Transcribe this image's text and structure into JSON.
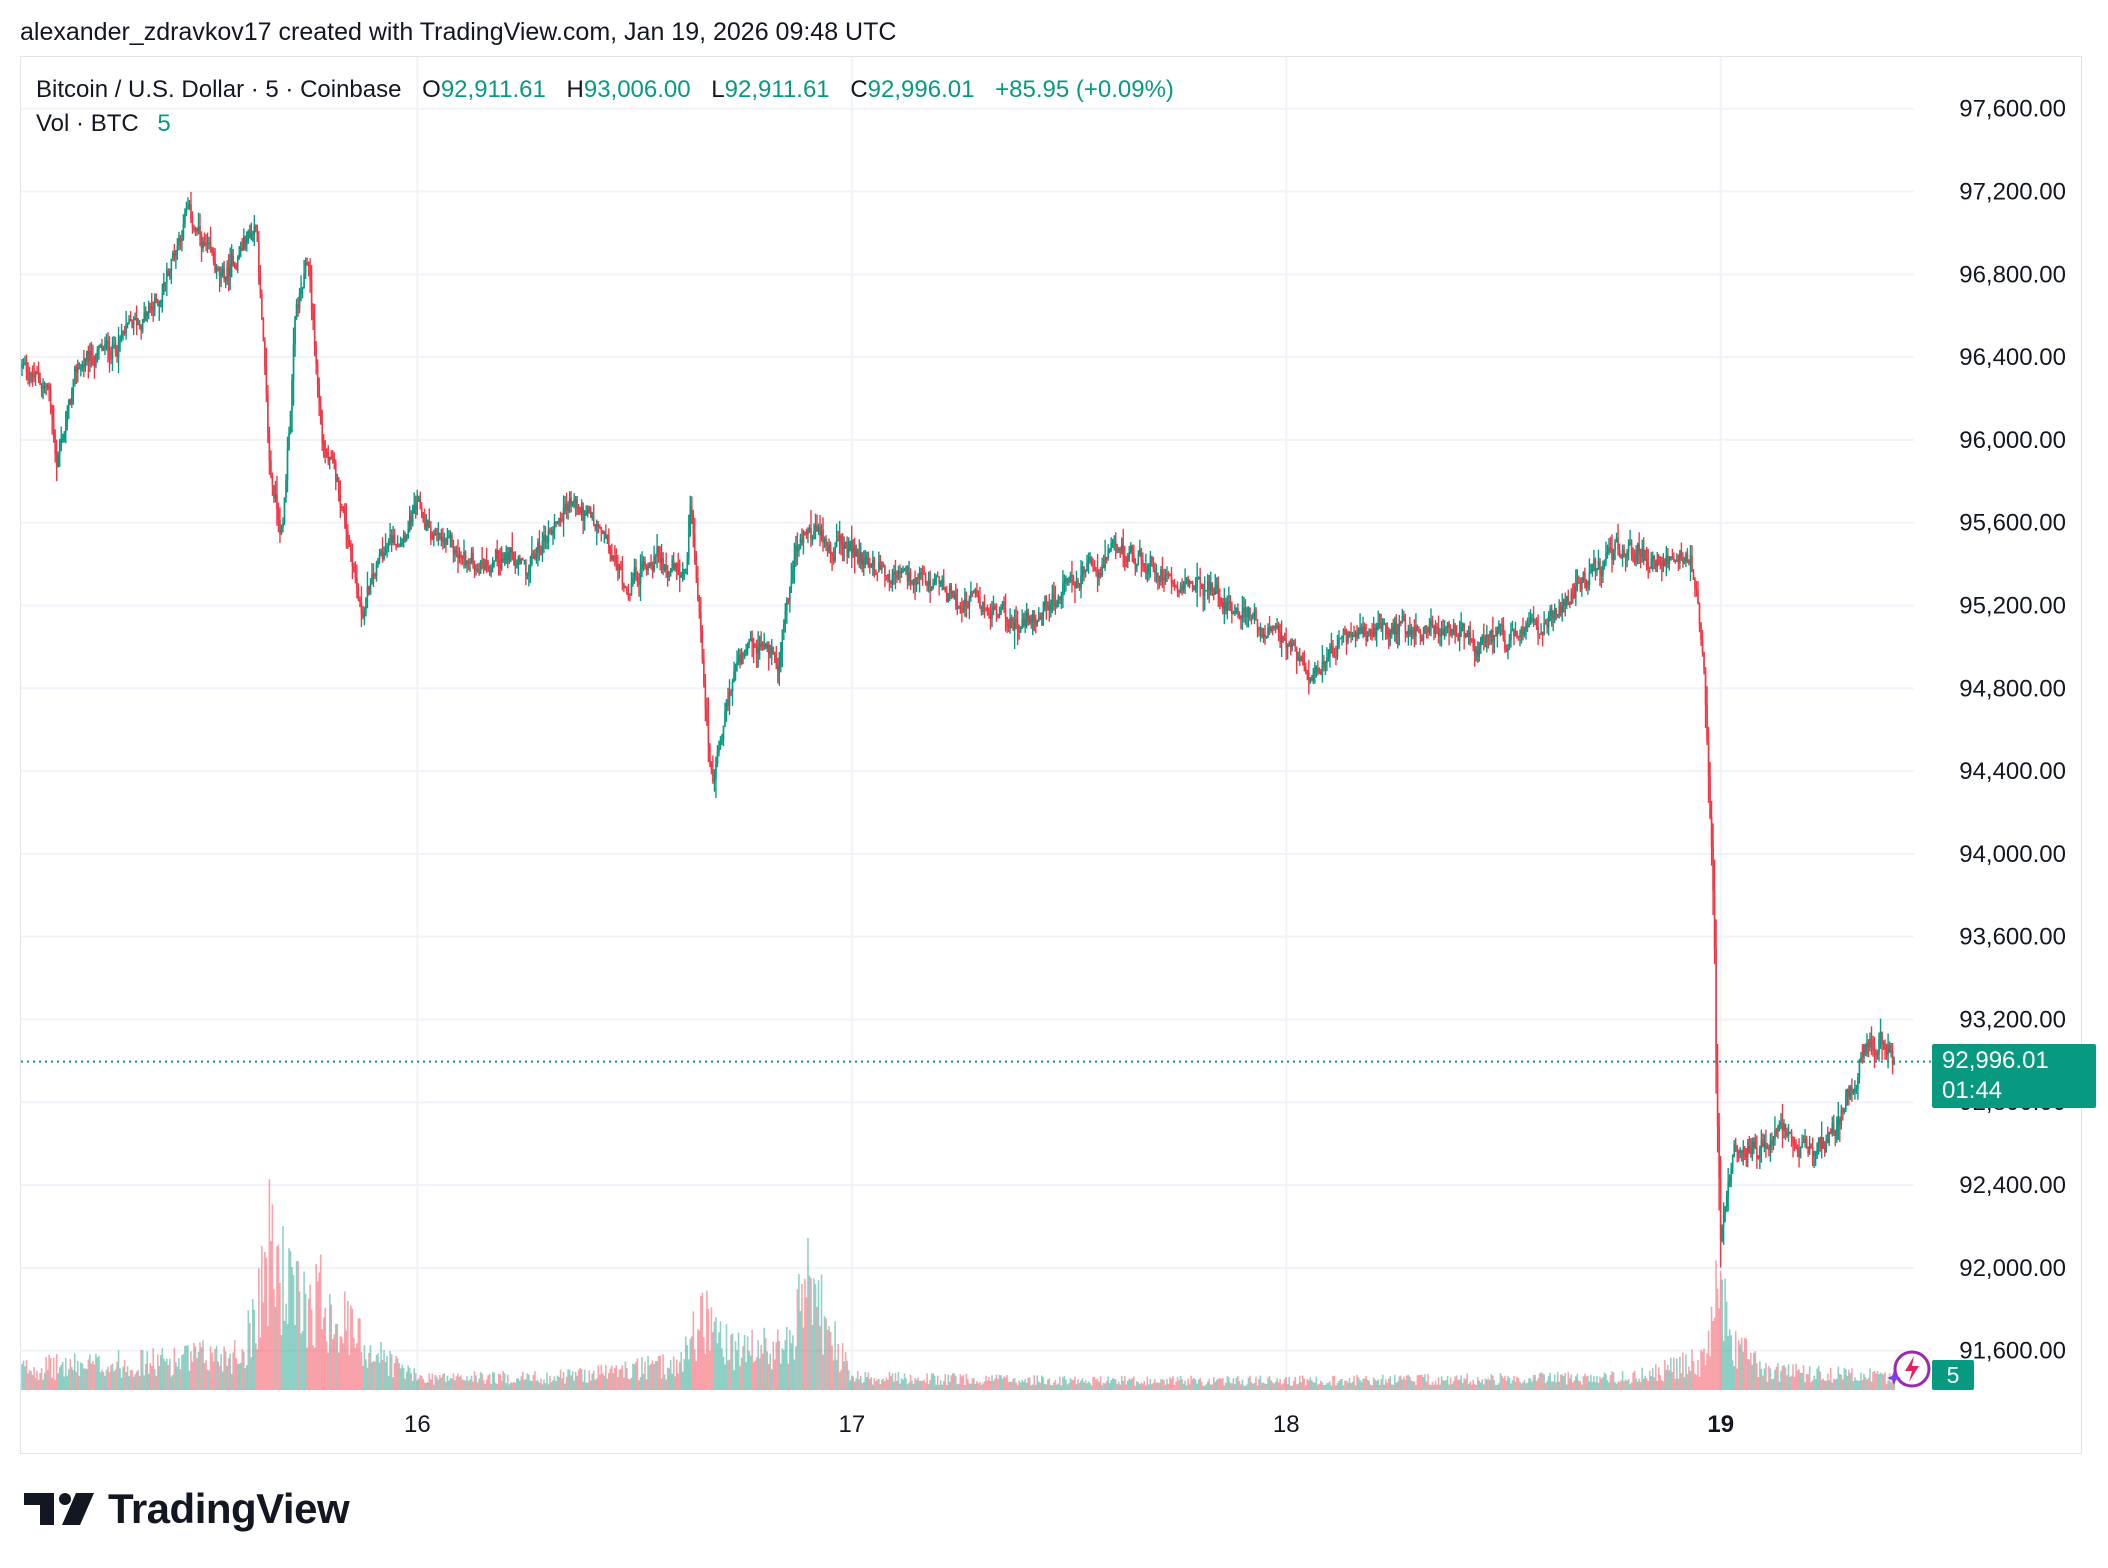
{
  "header": {
    "text": "alexander_zdravkov17 created with TradingView.com, Jan 19, 2026 09:48 UTC"
  },
  "legend": {
    "symbol": "Bitcoin / U.S. Dollar · 5 · Coinbase",
    "open_label": "O",
    "open": "92,911.61",
    "high_label": "H",
    "high": "93,006.00",
    "low_label": "L",
    "low": "92,911.61",
    "close_label": "C",
    "close": "92,996.01",
    "change": "+85.95 (+0.09%)"
  },
  "volume_legend": {
    "label": "Vol · BTC",
    "value": "5"
  },
  "price_tag": {
    "price": "92,996.01",
    "countdown": "01:44"
  },
  "volume_tag": "5",
  "brand": {
    "name": "TradingView",
    "logo_icon": "tradingview-logo-icon"
  },
  "colors": {
    "up": "#089981",
    "down": "#f23645",
    "grid": "#f0f3fa",
    "accent": "#089981"
  },
  "chart_data": {
    "type": "candlestick",
    "title": "Bitcoin / U.S. Dollar · 5 · Coinbase",
    "ylim": [
      91400,
      97850
    ],
    "xlim": [
      15.0877,
      19.4448
    ],
    "y_ticks": [
      97600,
      97200,
      96800,
      96400,
      96000,
      95600,
      95200,
      94800,
      94400,
      94000,
      93600,
      93200,
      92800,
      92400,
      92000,
      91600
    ],
    "y_tick_labels": [
      "97,600.00",
      "97,200.00",
      "96,800.00",
      "96,400.00",
      "96,000.00",
      "95,600.00",
      "95,200.00",
      "94,800.00",
      "94,400.00",
      "94,000.00",
      "93,600.00",
      "93,200.00",
      "92,800.00",
      "92,400.00",
      "92,000.00",
      "91,600.00"
    ],
    "x_ticks": [
      16,
      17,
      18,
      19
    ],
    "x_tick_labels": [
      "16",
      "17",
      "18",
      "19"
    ],
    "x_tick_bold": [
      false,
      false,
      false,
      true
    ],
    "last_close": 92996.01,
    "grid": true,
    "price_path": [
      [
        15.09,
        96350
      ],
      [
        15.15,
        96250
      ],
      [
        15.17,
        95900
      ],
      [
        15.22,
        96350
      ],
      [
        15.3,
        96450
      ],
      [
        15.4,
        96650
      ],
      [
        15.47,
        97100
      ],
      [
        15.55,
        96750
      ],
      [
        15.6,
        96950
      ],
      [
        15.63,
        97050
      ],
      [
        15.66,
        95850
      ],
      [
        15.69,
        95550
      ],
      [
        15.72,
        96600
      ],
      [
        15.75,
        96850
      ],
      [
        15.78,
        96000
      ],
      [
        15.82,
        95750
      ],
      [
        15.85,
        95450
      ],
      [
        15.87,
        95150
      ],
      [
        15.92,
        95450
      ],
      [
        16.0,
        95650
      ],
      [
        16.05,
        95500
      ],
      [
        16.12,
        95400
      ],
      [
        16.2,
        95450
      ],
      [
        16.25,
        95350
      ],
      [
        16.3,
        95550
      ],
      [
        16.35,
        95700
      ],
      [
        16.42,
        95550
      ],
      [
        16.48,
        95300
      ],
      [
        16.55,
        95450
      ],
      [
        16.62,
        95300
      ],
      [
        16.63,
        95650
      ],
      [
        16.66,
        94850
      ],
      [
        16.68,
        94300
      ],
      [
        16.73,
        94900
      ],
      [
        16.8,
        95000
      ],
      [
        16.83,
        94950
      ],
      [
        16.87,
        95450
      ],
      [
        16.9,
        95550
      ],
      [
        16.95,
        95500
      ],
      [
        17.05,
        95400
      ],
      [
        17.15,
        95300
      ],
      [
        17.3,
        95200
      ],
      [
        17.4,
        95100
      ],
      [
        17.5,
        95300
      ],
      [
        17.62,
        95450
      ],
      [
        17.75,
        95350
      ],
      [
        17.85,
        95250
      ],
      [
        17.94,
        95100
      ],
      [
        18.05,
        94900
      ],
      [
        18.15,
        95050
      ],
      [
        18.3,
        95100
      ],
      [
        18.45,
        95000
      ],
      [
        18.55,
        95050
      ],
      [
        18.65,
        95250
      ],
      [
        18.78,
        95500
      ],
      [
        18.85,
        95400
      ],
      [
        18.93,
        95450
      ],
      [
        18.96,
        95000
      ],
      [
        18.97,
        94500
      ],
      [
        18.985,
        93700
      ],
      [
        18.99,
        92900
      ],
      [
        19.0,
        92150
      ],
      [
        19.03,
        92650
      ],
      [
        19.08,
        92550
      ],
      [
        19.14,
        92650
      ],
      [
        19.22,
        92550
      ],
      [
        19.27,
        92700
      ],
      [
        19.33,
        93050
      ],
      [
        19.38,
        93100
      ],
      [
        19.4,
        92996.01
      ]
    ],
    "volume_profile": [
      [
        15.09,
        7
      ],
      [
        15.4,
        9
      ],
      [
        15.6,
        12
      ],
      [
        15.66,
        45
      ],
      [
        15.72,
        28
      ],
      [
        15.78,
        30
      ],
      [
        15.88,
        14
      ],
      [
        16.0,
        4
      ],
      [
        16.3,
        4
      ],
      [
        16.6,
        8
      ],
      [
        16.66,
        25
      ],
      [
        16.72,
        12
      ],
      [
        16.85,
        14
      ],
      [
        16.9,
        33
      ],
      [
        17.0,
        4
      ],
      [
        17.5,
        3
      ],
      [
        18.0,
        3
      ],
      [
        18.8,
        4
      ],
      [
        18.97,
        10
      ],
      [
        18.99,
        45
      ],
      [
        19.02,
        16
      ],
      [
        19.1,
        6
      ],
      [
        19.3,
        5
      ],
      [
        19.4,
        4
      ]
    ],
    "volume_ylim": [
      0,
      60
    ]
  }
}
